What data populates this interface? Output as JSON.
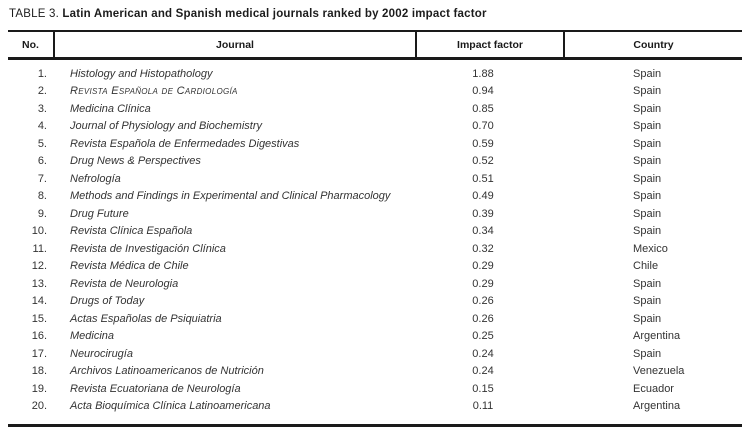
{
  "title": {
    "prefix": "TABLE 3.",
    "text": "Latin American and Spanish medical journals ranked by 2002 impact factor"
  },
  "table": {
    "columns": [
      "No.",
      "Journal",
      "Impact factor",
      "Country"
    ],
    "rows": [
      {
        "no": "1.",
        "journal": "Histology and Histopathology",
        "impact": "1.88",
        "country": "Spain",
        "smallcaps": false
      },
      {
        "no": "2.",
        "journal": "Revista Española de Cardiología",
        "impact": "0.94",
        "country": "Spain",
        "smallcaps": true
      },
      {
        "no": "3.",
        "journal": "Medicina Clínica",
        "impact": "0.85",
        "country": "Spain",
        "smallcaps": false
      },
      {
        "no": "4.",
        "journal": "Journal of Physiology and Biochemistry",
        "impact": "0.70",
        "country": "Spain",
        "smallcaps": false
      },
      {
        "no": "5.",
        "journal": "Revista Española de Enfermedades Digestivas",
        "impact": "0.59",
        "country": "Spain",
        "smallcaps": false
      },
      {
        "no": "6.",
        "journal": "Drug News & Perspectives",
        "impact": "0.52",
        "country": "Spain",
        "smallcaps": false
      },
      {
        "no": "7.",
        "journal": "Nefrología",
        "impact": "0.51",
        "country": "Spain",
        "smallcaps": false
      },
      {
        "no": "8.",
        "journal": "Methods and Findings in Experimental and Clinical Pharmacology",
        "impact": "0.49",
        "country": "Spain",
        "smallcaps": false
      },
      {
        "no": "9.",
        "journal": "Drug Future",
        "impact": "0.39",
        "country": "Spain",
        "smallcaps": false
      },
      {
        "no": "10.",
        "journal": "Revista Clínica Española",
        "impact": "0.34",
        "country": "Spain",
        "smallcaps": false
      },
      {
        "no": "11.",
        "journal": "Revista de Investigación Clínica",
        "impact": "0.32",
        "country": "Mexico",
        "smallcaps": false
      },
      {
        "no": "12.",
        "journal": "Revista Médica de Chile",
        "impact": "0.29",
        "country": "Chile",
        "smallcaps": false
      },
      {
        "no": "13.",
        "journal": "Revista de Neurologia",
        "impact": "0.29",
        "country": "Spain",
        "smallcaps": false
      },
      {
        "no": "14.",
        "journal": "Drugs of Today",
        "impact": "0.26",
        "country": "Spain",
        "smallcaps": false
      },
      {
        "no": "15.",
        "journal": "Actas Españolas de Psiquiatria",
        "impact": "0.26",
        "country": "Spain",
        "smallcaps": false
      },
      {
        "no": "16.",
        "journal": "Medicina",
        "impact": "0.25",
        "country": "Argentina",
        "smallcaps": false
      },
      {
        "no": "17.",
        "journal": "Neurocirugía",
        "impact": "0.24",
        "country": "Spain",
        "smallcaps": false
      },
      {
        "no": "18.",
        "journal": "Archivos Latinoamericanos de Nutrición",
        "impact": "0.24",
        "country": "Venezuela",
        "smallcaps": false
      },
      {
        "no": "19.",
        "journal": "Revista Ecuatoriana de Neurología",
        "impact": "0.15",
        "country": "Ecuador",
        "smallcaps": false
      },
      {
        "no": "20.",
        "journal": "Acta Bioquímica Clínica Latinoamericana",
        "impact": "0.11",
        "country": "Argentina",
        "smallcaps": false
      }
    ]
  }
}
